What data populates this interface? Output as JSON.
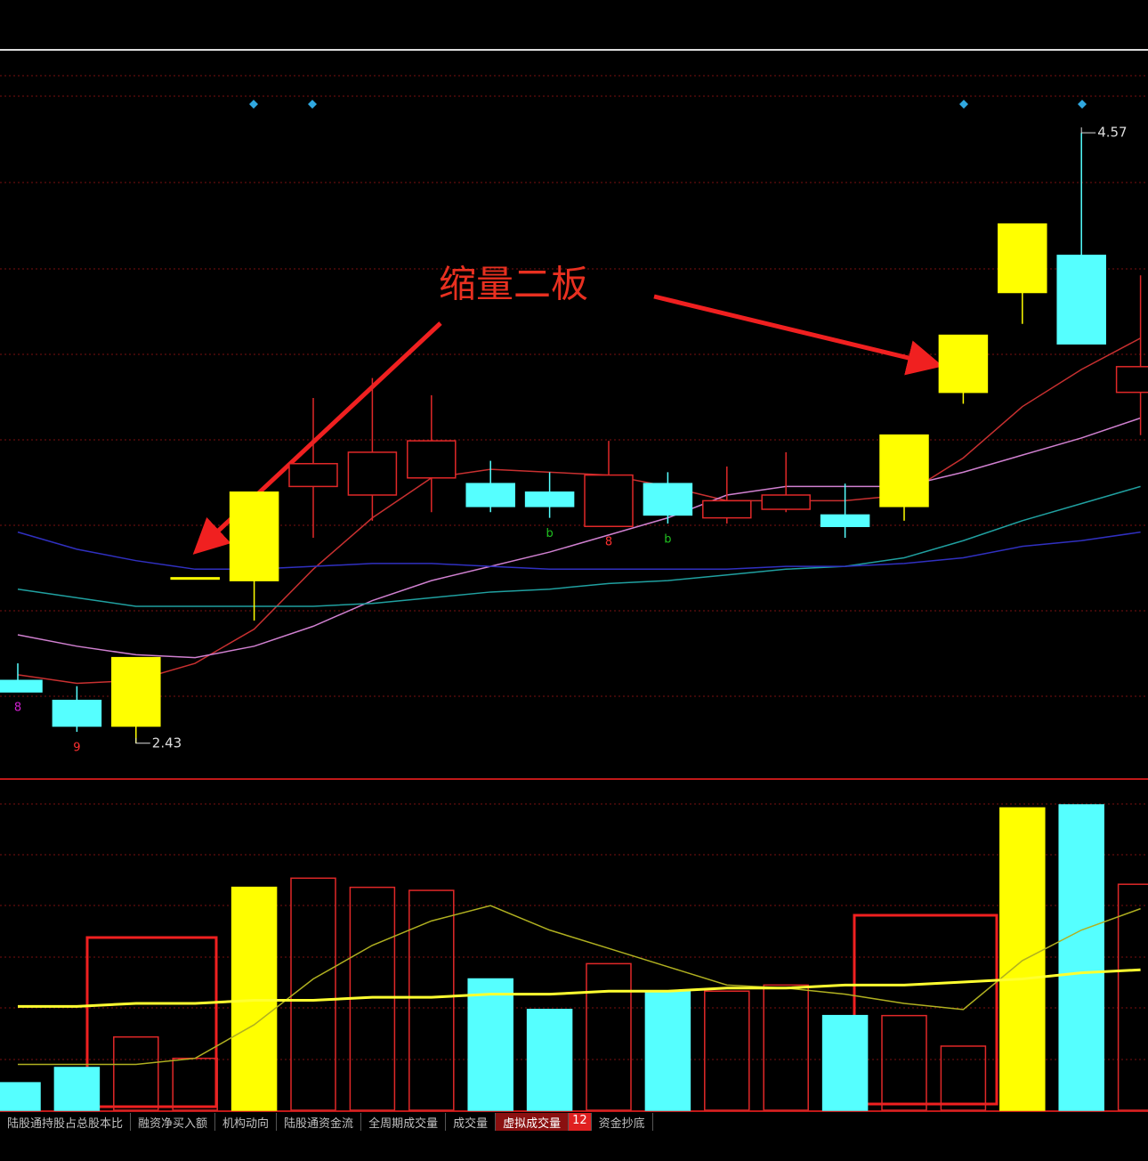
{
  "chart_data": [
    {
      "type": "candlestick",
      "annotation": "缩量二板",
      "ylim": [
        2.32,
        4.77
      ],
      "open": [
        2.65,
        2.58,
        2.49,
        3.01,
        3.0,
        3.33,
        3.3,
        3.36,
        3.34,
        3.31,
        3.19,
        3.34,
        3.22,
        3.25,
        3.23,
        3.26,
        3.66,
        4.01,
        4.14,
        3.66
      ],
      "high": [
        2.71,
        2.63,
        2.73,
        3.01,
        3.31,
        3.64,
        3.71,
        3.65,
        3.42,
        3.38,
        3.49,
        3.38,
        3.4,
        3.45,
        3.34,
        3.51,
        3.86,
        4.25,
        4.57,
        4.07
      ],
      "low": [
        2.61,
        2.47,
        2.43,
        3.01,
        2.86,
        3.15,
        3.21,
        3.24,
        3.24,
        3.22,
        3.19,
        3.2,
        3.2,
        3.24,
        3.15,
        3.21,
        3.62,
        3.9,
        3.83,
        3.51
      ],
      "close": [
        2.61,
        2.49,
        2.73,
        3.01,
        3.31,
        3.41,
        3.45,
        3.49,
        3.26,
        3.26,
        3.37,
        3.23,
        3.28,
        3.3,
        3.19,
        3.51,
        3.86,
        4.25,
        3.83,
        3.75
      ],
      "colors": [
        "#55ffff",
        "#55ffff",
        "#ffff00",
        "#ffff00",
        "#ffff00",
        "#e02828",
        "#e02828",
        "#e02828",
        "#55ffff",
        "#55ffff",
        "#e02828",
        "#55ffff",
        "#e02828",
        "#e02828",
        "#55ffff",
        "#ffff00",
        "#ffff00",
        "#ffff00",
        "#55ffff",
        "#e02828"
      ],
      "hollow": [
        false,
        false,
        false,
        false,
        false,
        true,
        true,
        true,
        false,
        false,
        true,
        false,
        true,
        true,
        false,
        false,
        false,
        false,
        false,
        true
      ],
      "marks": [
        "8",
        "9",
        null,
        null,
        null,
        null,
        null,
        null,
        null,
        "b",
        "8",
        "b",
        null,
        null,
        null,
        null,
        null,
        null,
        null,
        null
      ],
      "mark_colors": [
        "#d020d0",
        "#ff3030",
        null,
        null,
        null,
        null,
        null,
        null,
        null,
        "#20c020",
        "#ff3030",
        "#20c020",
        null,
        null,
        null,
        null,
        null,
        null,
        null,
        null
      ],
      "series": [
        {
          "color": "#c83030",
          "values": [
            2.67,
            2.64,
            2.65,
            2.71,
            2.83,
            3.04,
            3.22,
            3.36,
            3.39,
            3.38,
            3.37,
            3.33,
            3.28,
            3.28,
            3.28,
            3.3,
            3.43,
            3.61,
            3.74,
            3.85
          ]
        },
        {
          "color": "#d080d0",
          "values": [
            2.81,
            2.77,
            2.74,
            2.73,
            2.77,
            2.84,
            2.93,
            3.0,
            3.05,
            3.1,
            3.16,
            3.22,
            3.3,
            3.33,
            3.33,
            3.33,
            3.38,
            3.44,
            3.5,
            3.57
          ]
        },
        {
          "color": "#20a0a0",
          "values": [
            2.97,
            2.94,
            2.91,
            2.91,
            2.91,
            2.91,
            2.92,
            2.94,
            2.96,
            2.97,
            2.99,
            3.0,
            3.02,
            3.04,
            3.05,
            3.08,
            3.14,
            3.21,
            3.27,
            3.33
          ]
        },
        {
          "color": "#3030c0",
          "values": [
            3.17,
            3.11,
            3.07,
            3.04,
            3.04,
            3.05,
            3.06,
            3.06,
            3.05,
            3.04,
            3.04,
            3.04,
            3.04,
            3.05,
            3.05,
            3.06,
            3.08,
            3.12,
            3.14,
            3.17
          ]
        }
      ]
    },
    {
      "type": "bar",
      "ylim": [
        0,
        107
      ],
      "values": [
        9,
        14,
        24,
        17,
        73,
        76,
        73,
        72,
        43,
        33,
        48,
        39,
        39,
        41,
        31,
        31,
        21,
        99,
        100,
        74
      ],
      "colors": [
        "#55ffff",
        "#55ffff",
        "#e02828",
        "#e02828",
        "#ffff00",
        "#e02828",
        "#e02828",
        "#e02828",
        "#55ffff",
        "#55ffff",
        "#e02828",
        "#55ffff",
        "#e02828",
        "#e02828",
        "#55ffff",
        "#e02828",
        "#e02828",
        "#ffff00",
        "#55ffff",
        "#e02828"
      ],
      "hollow": [
        false,
        false,
        true,
        true,
        false,
        true,
        true,
        true,
        false,
        false,
        true,
        false,
        true,
        true,
        false,
        true,
        true,
        false,
        false,
        true
      ],
      "series": [
        {
          "color": "#b0b020",
          "values": [
            15,
            15,
            15,
            17,
            28,
            43,
            54,
            62,
            67,
            59,
            53,
            47,
            41,
            40,
            38,
            35,
            33,
            49,
            59,
            66
          ]
        },
        {
          "color": "#ffff30",
          "values": [
            34,
            34,
            35,
            35,
            36,
            36,
            37,
            37,
            38,
            38,
            39,
            39,
            40,
            40,
            41,
            41,
            42,
            43,
            45,
            46
          ]
        }
      ]
    }
  ],
  "tabs": [
    "陆股通持股占总股本比",
    "融资净买入额",
    "机构动向",
    "陆股通资金流",
    "全周期成交量",
    "成交量",
    "虚拟成交量",
    "12",
    "资金抄底"
  ]
}
